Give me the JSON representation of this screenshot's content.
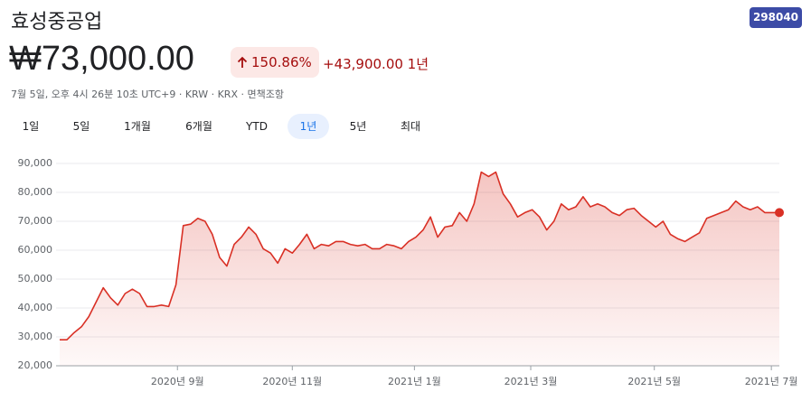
{
  "header": {
    "title": "효성중공업",
    "ticker": "298040",
    "price": "₩73,000.00",
    "change_pct": "150.86%",
    "change_abs": "+43,900.00 1년",
    "meta": "7월 5일, 오후 4시 26분 10초 UTC+9 · KRW · KRX · 면책조항"
  },
  "tabs": {
    "items": [
      "1일",
      "5일",
      "1개월",
      "6개월",
      "YTD",
      "1년",
      "5년",
      "최대"
    ],
    "active": 5
  },
  "chart_data": {
    "type": "line",
    "color": "#d93025",
    "grid": true,
    "values": [
      29000,
      29000,
      31500,
      33500,
      37000,
      42000,
      47000,
      43500,
      41000,
      45000,
      46500,
      45000,
      40500,
      40500,
      41000,
      40500,
      48000,
      68500,
      69000,
      71000,
      70000,
      65500,
      57500,
      54500,
      62000,
      64500,
      68000,
      65500,
      60500,
      59000,
      55500,
      60500,
      59000,
      62000,
      65500,
      60500,
      62000,
      61500,
      63000,
      63000,
      62000,
      61500,
      62000,
      60500,
      60500,
      62000,
      61500,
      60500,
      63000,
      64500,
      67000,
      71500,
      64500,
      68000,
      68500,
      73000,
      70000,
      76000,
      87000,
      85500,
      87000,
      79500,
      76000,
      71500,
      73000,
      74000,
      71500,
      67000,
      70000,
      76000,
      74000,
      75000,
      78500,
      75000,
      76000,
      75000,
      73000,
      72000,
      74000,
      74500,
      72000,
      70000,
      68000,
      70000,
      65500,
      64000,
      63000,
      64500,
      66000,
      71000,
      72000,
      73000,
      74000,
      77000,
      75000,
      74000,
      75000,
      73000,
      73000,
      73000
    ],
    "xlim": [
      0,
      99
    ],
    "xticks": [
      {
        "value": 16.2,
        "label": "2020년 9월"
      },
      {
        "value": 32,
        "label": "2020년 11월"
      },
      {
        "value": 48.8,
        "label": "2021년 1월"
      },
      {
        "value": 64.8,
        "label": "2021년 3월"
      },
      {
        "value": 81.8,
        "label": "2021년 5월"
      },
      {
        "value": 97.9,
        "label": "2021년 7월"
      }
    ],
    "ylim": [
      20000,
      90000
    ],
    "yticks": [
      {
        "value": 20000,
        "label": "20,000"
      },
      {
        "value": 30000,
        "label": "30,000"
      },
      {
        "value": 40000,
        "label": "40,000"
      },
      {
        "value": 50000,
        "label": "50,000"
      },
      {
        "value": 60000,
        "label": "60,000"
      },
      {
        "value": 70000,
        "label": "70,000"
      },
      {
        "value": 80000,
        "label": "80,000"
      },
      {
        "value": 90000,
        "label": "90,000"
      }
    ]
  }
}
